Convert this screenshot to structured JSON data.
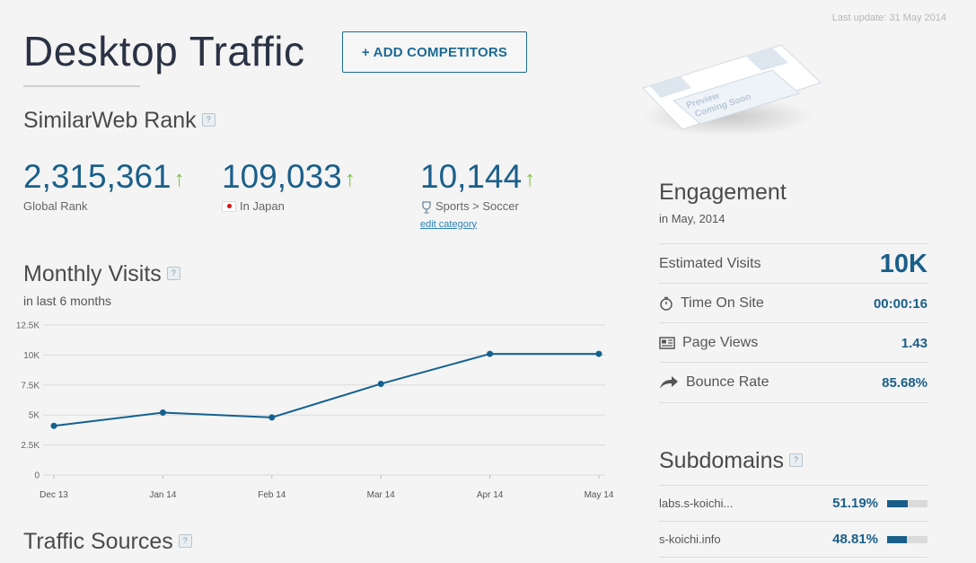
{
  "last_update": "Last update: 31 May 2014",
  "page_title": "Desktop Traffic",
  "add_competitors": "+ ADD COMPETITORS",
  "preview_text": [
    "Preview",
    "Coming Soon"
  ],
  "rank": {
    "title": "SimilarWeb Rank",
    "global": {
      "value": "2,315,361",
      "label": "Global Rank"
    },
    "country": {
      "value": "109,033",
      "label": "In Japan"
    },
    "category": {
      "value": "10,144",
      "label": "Sports > Soccer",
      "edit": "edit category"
    }
  },
  "monthly": {
    "title": "Monthly Visits",
    "subtitle": "in last 6 months"
  },
  "chart_data": {
    "type": "line",
    "categories": [
      "Dec 13",
      "Jan 14",
      "Feb 14",
      "Mar 14",
      "Apr 14",
      "May 14"
    ],
    "values": [
      4100,
      5200,
      4800,
      7600,
      10100,
      10100
    ],
    "yticks": [
      "12.5K",
      "10K",
      "7.5K",
      "5K",
      "2.5K",
      "0"
    ],
    "ylim": [
      0,
      12500
    ],
    "color": "#14618f"
  },
  "traffic_sources": {
    "title": "Traffic Sources"
  },
  "engagement": {
    "title": "Engagement",
    "subtitle": "in May, 2014",
    "rows": [
      {
        "label": "Estimated Visits",
        "value": "10K"
      },
      {
        "label": "Time On Site",
        "value": "00:00:16"
      },
      {
        "label": "Page Views",
        "value": "1.43"
      },
      {
        "label": "Bounce Rate",
        "value": "85.68%"
      }
    ]
  },
  "subdomains": {
    "title": "Subdomains",
    "rows": [
      {
        "name": "labs.s-koichi...",
        "pct": "51.19%",
        "share": 0.5119
      },
      {
        "name": "s-koichi.info",
        "pct": "48.81%",
        "share": 0.4881
      }
    ]
  },
  "colors": {
    "accent": "#1a5f8a",
    "up": "#7cc142"
  }
}
